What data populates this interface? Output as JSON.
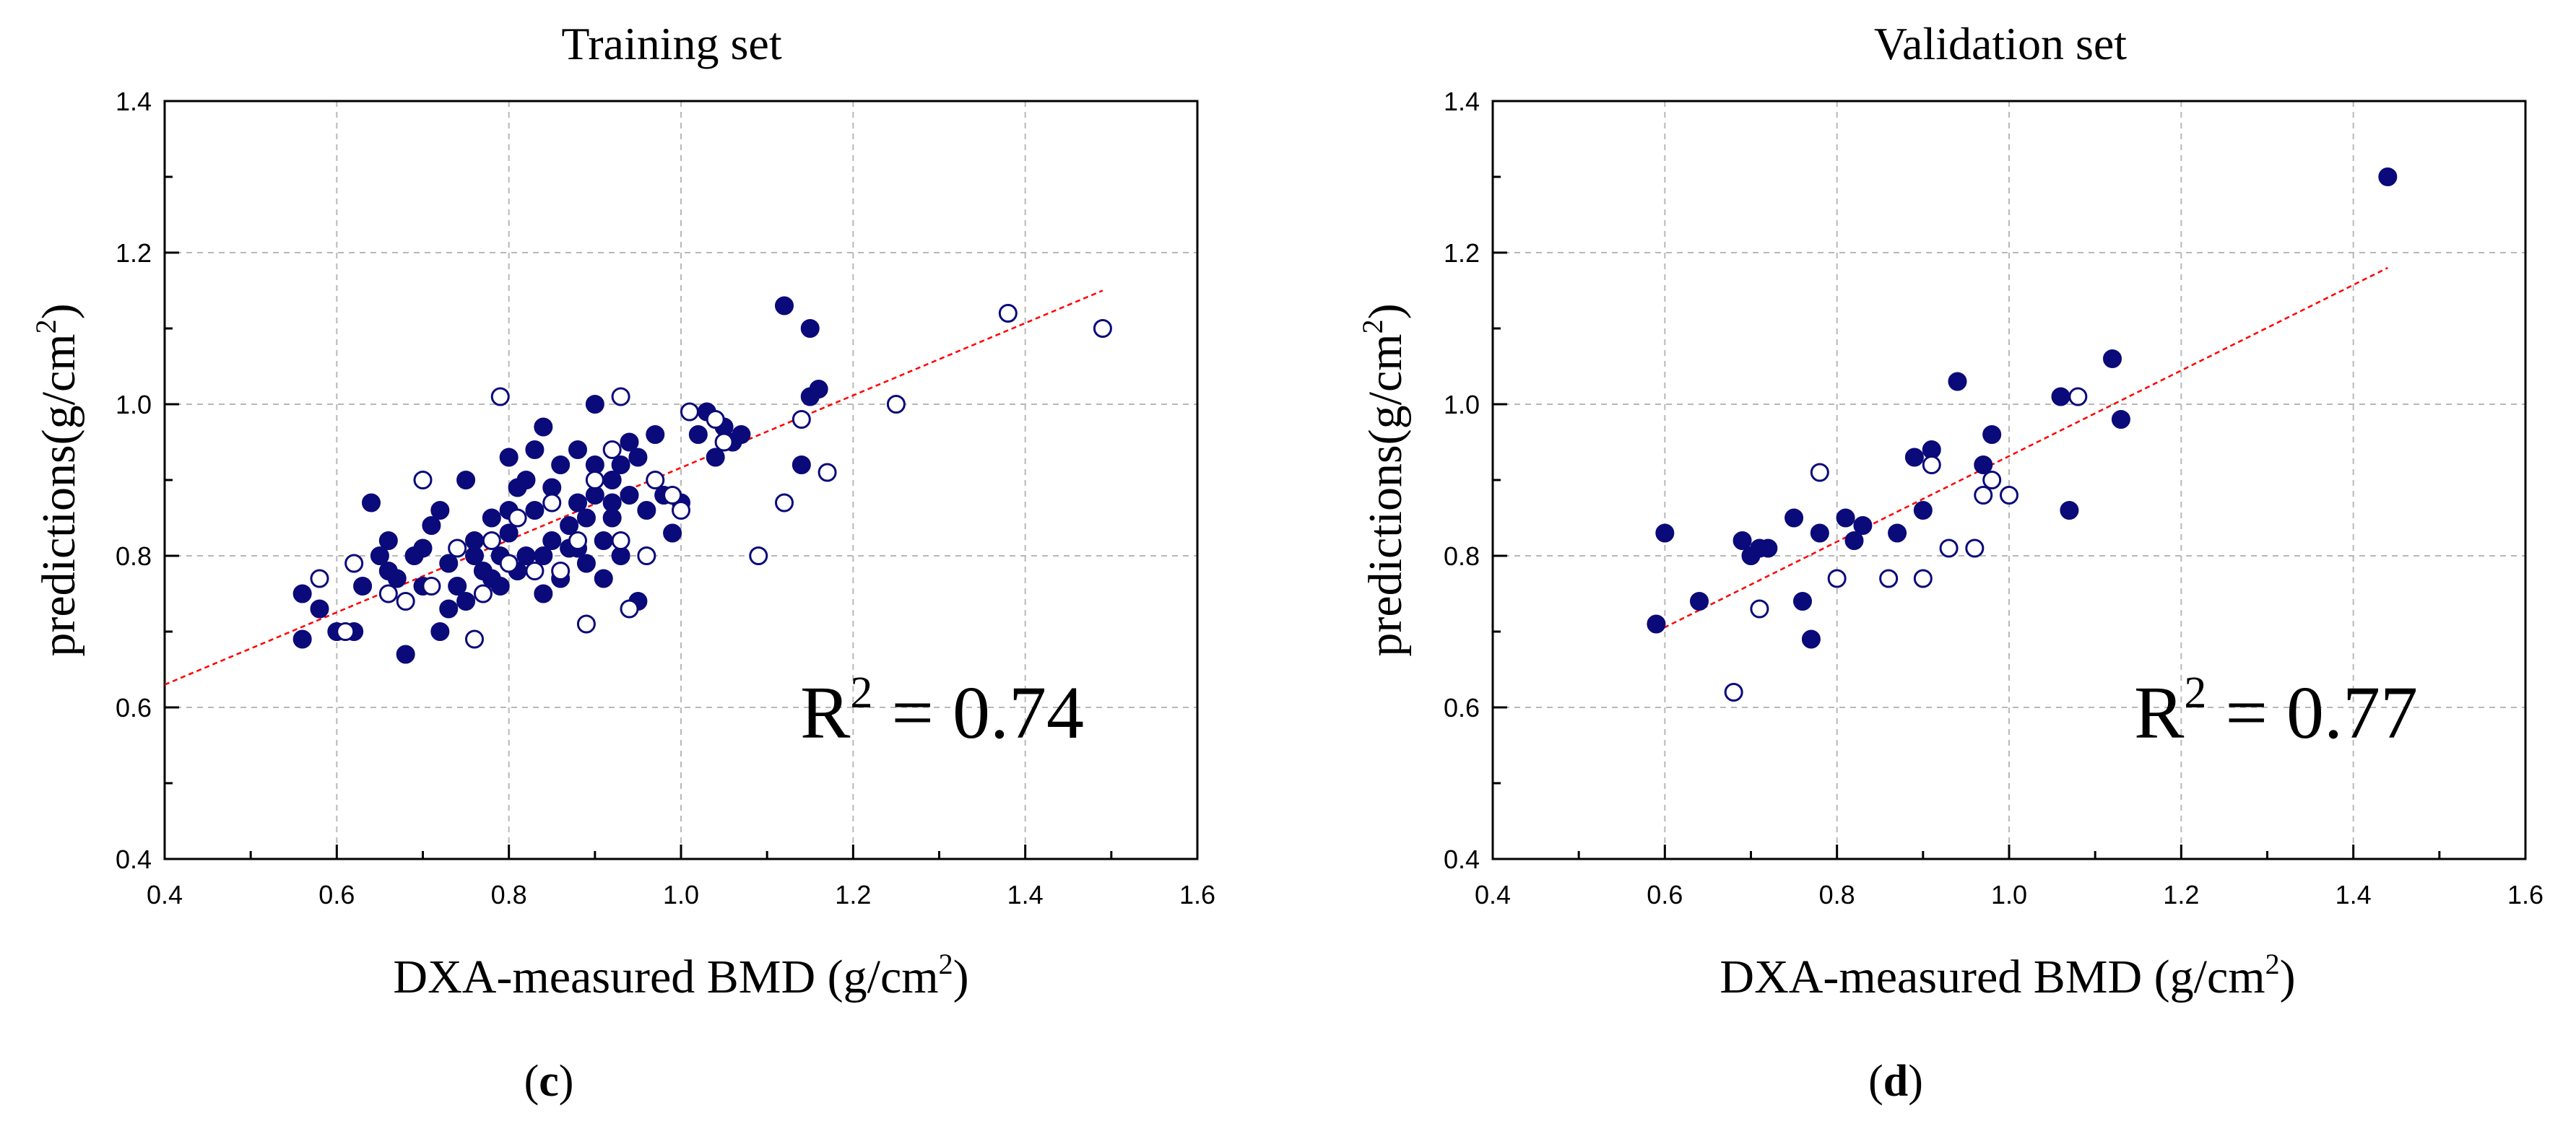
{
  "chart_data": [
    {
      "type": "scatter",
      "panel_label": "c",
      "title": "Training set",
      "xlabel": "DXA-measured BMD (g/cm",
      "xlabel_sup": "2",
      "xlabel_suffix": ")",
      "ylabel": "predictions(g/cm",
      "ylabel_sup": "2",
      "ylabel_suffix": ")",
      "xlim": [
        0.4,
        1.6
      ],
      "ylim": [
        0.4,
        1.4
      ],
      "xticks": [
        "0.4",
        "0.6",
        "0.8",
        "1.0",
        "1.2",
        "1.4",
        "1.6"
      ],
      "yticks": [
        "0.4",
        "0.6",
        "0.8",
        "1.0",
        "1.2",
        "1.4"
      ],
      "grid": true,
      "annotation": {
        "prefix": "R",
        "sup": "2",
        "suffix": " = 0.74"
      },
      "fit_line": {
        "x": [
          0.4,
          1.49
        ],
        "y": [
          0.63,
          1.15
        ],
        "color": "#ff0000",
        "style": "dashed"
      },
      "series": [
        {
          "name": "filled",
          "marker": "filled-circle",
          "color": "#0a0a7a",
          "points": [
            [
              0.56,
              0.75
            ],
            [
              0.56,
              0.69
            ],
            [
              0.58,
              0.73
            ],
            [
              0.6,
              0.7
            ],
            [
              0.62,
              0.7
            ],
            [
              0.63,
              0.76
            ],
            [
              0.64,
              0.87
            ],
            [
              0.65,
              0.8
            ],
            [
              0.66,
              0.82
            ],
            [
              0.67,
              0.77
            ],
            [
              0.68,
              0.67
            ],
            [
              0.69,
              0.8
            ],
            [
              0.7,
              0.81
            ],
            [
              0.7,
              0.76
            ],
            [
              0.71,
              0.84
            ],
            [
              0.72,
              0.7
            ],
            [
              0.72,
              0.86
            ],
            [
              0.73,
              0.73
            ],
            [
              0.73,
              0.79
            ],
            [
              0.74,
              0.76
            ],
            [
              0.75,
              0.9
            ],
            [
              0.75,
              0.74
            ],
            [
              0.76,
              0.8
            ],
            [
              0.77,
              0.78
            ],
            [
              0.78,
              0.77
            ],
            [
              0.78,
              0.85
            ],
            [
              0.79,
              0.8
            ],
            [
              0.79,
              0.76
            ],
            [
              0.8,
              0.83
            ],
            [
              0.8,
              0.86
            ],
            [
              0.8,
              0.93
            ],
            [
              0.81,
              0.78
            ],
            [
              0.81,
              0.89
            ],
            [
              0.82,
              0.8
            ],
            [
              0.83,
              0.86
            ],
            [
              0.83,
              0.94
            ],
            [
              0.84,
              0.75
            ],
            [
              0.84,
              0.8
            ],
            [
              0.85,
              0.89
            ],
            [
              0.85,
              0.82
            ],
            [
              0.86,
              0.92
            ],
            [
              0.86,
              0.77
            ],
            [
              0.87,
              0.84
            ],
            [
              0.87,
              0.81
            ],
            [
              0.88,
              0.94
            ],
            [
              0.88,
              0.87
            ],
            [
              0.89,
              0.85
            ],
            [
              0.89,
              0.79
            ],
            [
              0.9,
              0.92
            ],
            [
              0.9,
              1.0
            ],
            [
              0.9,
              0.88
            ],
            [
              0.91,
              0.82
            ],
            [
              0.91,
              0.77
            ],
            [
              0.92,
              0.9
            ],
            [
              0.92,
              0.85
            ],
            [
              0.93,
              0.92
            ],
            [
              0.93,
              0.8
            ],
            [
              0.94,
              0.95
            ],
            [
              0.94,
              0.88
            ],
            [
              0.95,
              0.74
            ],
            [
              0.95,
              0.93
            ],
            [
              0.96,
              0.86
            ],
            [
              0.97,
              0.96
            ],
            [
              0.98,
              0.88
            ],
            [
              0.99,
              0.83
            ],
            [
              1.0,
              0.87
            ],
            [
              1.02,
              0.96
            ],
            [
              1.03,
              0.99
            ],
            [
              1.04,
              0.93
            ],
            [
              1.05,
              0.97
            ],
            [
              1.06,
              0.95
            ],
            [
              1.07,
              0.96
            ],
            [
              1.12,
              1.13
            ],
            [
              1.15,
              1.1
            ],
            [
              1.15,
              1.01
            ],
            [
              1.16,
              1.02
            ],
            [
              1.14,
              0.92
            ],
            [
              0.66,
              0.78
            ],
            [
              0.76,
              0.82
            ],
            [
              0.82,
              0.9
            ],
            [
              0.84,
              0.97
            ],
            [
              0.88,
              0.81
            ],
            [
              0.92,
              0.87
            ]
          ]
        },
        {
          "name": "open",
          "marker": "open-circle",
          "color": "#0a0a7a",
          "points": [
            [
              0.58,
              0.77
            ],
            [
              0.61,
              0.7
            ],
            [
              0.62,
              0.79
            ],
            [
              0.66,
              0.75
            ],
            [
              0.68,
              0.74
            ],
            [
              0.7,
              0.9
            ],
            [
              0.71,
              0.76
            ],
            [
              0.74,
              0.81
            ],
            [
              0.76,
              0.69
            ],
            [
              0.77,
              0.75
            ],
            [
              0.78,
              0.82
            ],
            [
              0.79,
              1.01
            ],
            [
              0.8,
              0.79
            ],
            [
              0.81,
              0.85
            ],
            [
              0.83,
              0.78
            ],
            [
              0.85,
              0.87
            ],
            [
              0.86,
              0.78
            ],
            [
              0.88,
              0.82
            ],
            [
              0.89,
              0.71
            ],
            [
              0.9,
              0.9
            ],
            [
              0.92,
              0.94
            ],
            [
              0.93,
              1.01
            ],
            [
              0.93,
              0.82
            ],
            [
              0.94,
              0.73
            ],
            [
              0.96,
              0.8
            ],
            [
              0.97,
              0.9
            ],
            [
              0.99,
              0.88
            ],
            [
              1.0,
              0.86
            ],
            [
              1.01,
              0.99
            ],
            [
              1.04,
              0.98
            ],
            [
              1.05,
              0.95
            ],
            [
              1.09,
              0.8
            ],
            [
              1.12,
              0.87
            ],
            [
              1.14,
              0.98
            ],
            [
              1.17,
              0.91
            ],
            [
              1.25,
              1.0
            ],
            [
              1.38,
              1.12
            ],
            [
              1.49,
              1.1
            ]
          ]
        }
      ]
    },
    {
      "type": "scatter",
      "panel_label": "d",
      "title": "Validation set",
      "xlabel": "DXA-measured BMD (g/cm",
      "xlabel_sup": "2",
      "xlabel_suffix": ")",
      "ylabel": "predictions(g/cm",
      "ylabel_sup": "2",
      "ylabel_suffix": ")",
      "xlim": [
        0.4,
        1.6
      ],
      "ylim": [
        0.4,
        1.4
      ],
      "xticks": [
        "0.4",
        "0.6",
        "0.8",
        "1.0",
        "1.2",
        "1.4",
        "1.6"
      ],
      "yticks": [
        "0.4",
        "0.6",
        "0.8",
        "1.0",
        "1.2",
        "1.4"
      ],
      "grid": true,
      "annotation": {
        "prefix": "R",
        "sup": "2",
        "suffix": " = 0.77"
      },
      "fit_line": {
        "x": [
          0.59,
          1.44
        ],
        "y": [
          0.7,
          1.18
        ],
        "color": "#ff0000",
        "style": "dashed"
      },
      "series": [
        {
          "name": "filled",
          "marker": "filled-circle",
          "color": "#0a0a7a",
          "points": [
            [
              0.59,
              0.71
            ],
            [
              0.6,
              0.83
            ],
            [
              0.64,
              0.74
            ],
            [
              0.69,
              0.82
            ],
            [
              0.7,
              0.8
            ],
            [
              0.71,
              0.81
            ],
            [
              0.72,
              0.81
            ],
            [
              0.75,
              0.85
            ],
            [
              0.76,
              0.74
            ],
            [
              0.77,
              0.69
            ],
            [
              0.78,
              0.83
            ],
            [
              0.81,
              0.85
            ],
            [
              0.82,
              0.82
            ],
            [
              0.83,
              0.84
            ],
            [
              0.87,
              0.83
            ],
            [
              0.89,
              0.93
            ],
            [
              0.9,
              0.86
            ],
            [
              0.91,
              0.94
            ],
            [
              0.94,
              1.03
            ],
            [
              0.97,
              0.92
            ],
            [
              0.98,
              0.96
            ],
            [
              1.06,
              1.01
            ],
            [
              1.07,
              0.86
            ],
            [
              1.12,
              1.06
            ],
            [
              1.13,
              0.98
            ],
            [
              1.44,
              1.3
            ]
          ]
        },
        {
          "name": "open",
          "marker": "open-circle",
          "color": "#0a0a7a",
          "points": [
            [
              0.68,
              0.62
            ],
            [
              0.71,
              0.73
            ],
            [
              0.78,
              0.91
            ],
            [
              0.8,
              0.77
            ],
            [
              0.86,
              0.77
            ],
            [
              0.9,
              0.77
            ],
            [
              0.91,
              0.92
            ],
            [
              0.93,
              0.81
            ],
            [
              0.96,
              0.81
            ],
            [
              0.97,
              0.88
            ],
            [
              0.98,
              0.9
            ],
            [
              1.0,
              0.88
            ],
            [
              1.08,
              1.01
            ]
          ]
        }
      ]
    }
  ]
}
